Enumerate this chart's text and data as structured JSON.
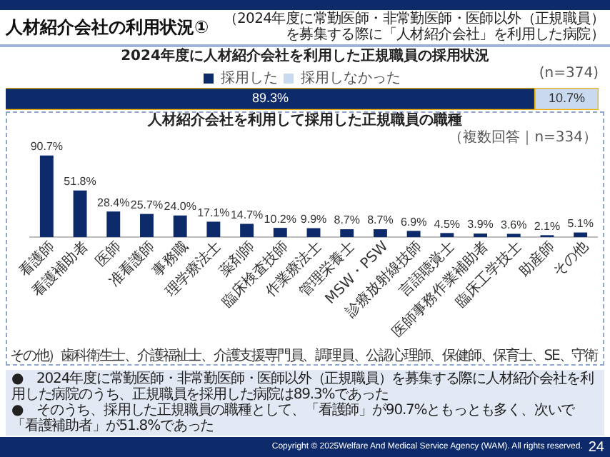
{
  "chart_data": [
    {
      "type": "other",
      "title": "人材紹介会社の利用状況①",
      "subtitle": "（2024年度に常勤医師・非常勤医師・医師以外（正規職員）を募集する際に「人材紹介会社」を利用した病院）",
      "annotations": [
        "●　2024年度に常勤医師・非常勤医師・医師以外（正規職員）を募集する際に人材紹介会社を利用した病院のうち、正規職員を採用した病院は89.3%であった",
        "●　そのうち、採用した正規職員の職種として、「看護師」が90.7%ともっとも多く、次いで「看護補助者」が51.8%であった",
        "Copyright © 2025Welfare And Medical Service Agency (WAM). All rights reserved.",
        "24"
      ]
    },
    {
      "type": "bar",
      "orientation": "horizontal",
      "stacked": true,
      "title": "2024年度に人材紹介会社を利用した正規職員の採用状況",
      "categories": [
        null
      ],
      "series": [
        {
          "name": "採用した",
          "color": "#0d2a6b",
          "values": [
            89.3
          ],
          "value_labels": [
            "89.3%"
          ]
        },
        {
          "name": "採用しなかった",
          "color": "#c9daf0",
          "values": [
            10.7
          ],
          "value_labels": [
            "10.7%"
          ]
        }
      ],
      "legend": "top",
      "tick_labels": false,
      "annotations": [
        "(n=374)"
      ]
    },
    {
      "type": "bar",
      "title": "人材紹介会社を利用して採用した正規職員の職種",
      "categories": [
        "看護師",
        "看護補助者",
        "医師",
        "准看護師",
        "事務職",
        "理学療法士",
        "薬剤師",
        "臨床検査技師",
        "作業療法士",
        "管理栄養士",
        "MSW・PSW",
        "診療放射線技師",
        "言語聴覚士",
        "医師事務作業補助者",
        "臨床工学技士",
        "助産師",
        "その他"
      ],
      "values": [
        90.7,
        51.8,
        28.4,
        25.7,
        24.0,
        17.1,
        14.7,
        10.2,
        9.9,
        8.7,
        8.7,
        6.9,
        4.5,
        3.9,
        3.6,
        2.1,
        5.1
      ],
      "value_labels": [
        "90.7%",
        "51.8%",
        "28.4%",
        "25.7%",
        "24.0%",
        "17.1%",
        "14.7%",
        "10.2%",
        "9.9%",
        "8.7%",
        "8.7%",
        "6.9%",
        "4.5%",
        "3.9%",
        "3.6%",
        "2.1%",
        "5.1%"
      ],
      "color": "#0d2a6b",
      "tick_labels": "x",
      "annotations": [
        "（複数回答｜n=334）",
        "その他）歯科衛生士、介護福祉士、介護支援専門員、調理員、公認心理師、保健師、保育士、SE、守衛"
      ]
    }
  ]
}
